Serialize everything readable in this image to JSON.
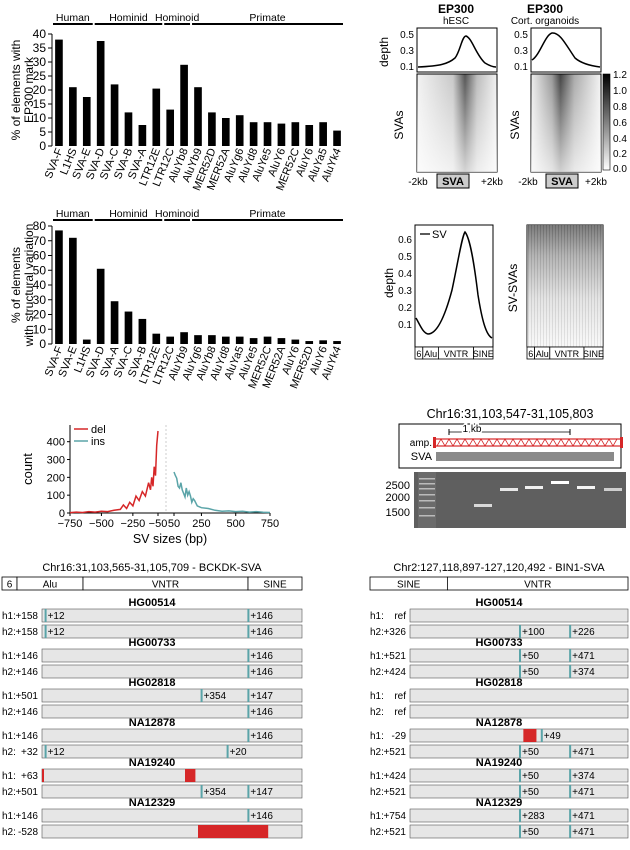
{
  "chart_data": [
    {
      "id": "ep300_bar",
      "type": "bar",
      "ylabel": "% of elements with EP300 mark",
      "ylim": [
        0,
        40
      ],
      "yticks": [
        0,
        5,
        10,
        15,
        20,
        25,
        30,
        35,
        40
      ],
      "groups": [
        {
          "label": "Human",
          "from": 0,
          "to": 2
        },
        {
          "label": "Hominid",
          "from": 3,
          "to": 7
        },
        {
          "label": "Hominoid",
          "from": 8,
          "to": 9
        },
        {
          "label": "Primate",
          "from": 10,
          "to": 20
        }
      ],
      "categories": [
        "SVA-F",
        "L1HS",
        "SVA-E",
        "SVA-D",
        "SVA-C",
        "SVA-B",
        "SVA-A",
        "LTR12E",
        "LTR12C",
        "AluYb8",
        "AluYb9",
        "MER52D",
        "MER52A",
        "AluYg6",
        "AluYd8",
        "AluYe5",
        "AluY6",
        "MER52C",
        "AluY6",
        "AluYa5",
        "AluYk4"
      ],
      "values": [
        38,
        21,
        17.5,
        37.5,
        22,
        12,
        7.5,
        20.5,
        13,
        29,
        21,
        12,
        10,
        11,
        8.5,
        8.5,
        8,
        8.5,
        7.5,
        8.5,
        5.5
      ]
    },
    {
      "id": "sv_bar",
      "type": "bar",
      "ylabel": "% of elements with structural variation",
      "ylim": [
        0,
        80
      ],
      "yticks": [
        0,
        10,
        20,
        30,
        40,
        50,
        60,
        70,
        80
      ],
      "groups": [
        {
          "label": "Human",
          "from": 0,
          "to": 2
        },
        {
          "label": "Hominid",
          "from": 3,
          "to": 7
        },
        {
          "label": "Hominoid",
          "from": 8,
          "to": 9
        },
        {
          "label": "Primate",
          "from": 10,
          "to": 20
        }
      ],
      "categories": [
        "SVA-F",
        "SVA-E",
        "L1HS",
        "SVA-D",
        "SVA-A",
        "SVA-C",
        "SVA-B",
        "LTR12E",
        "LTR12C",
        "AluYb9",
        "AluYg6",
        "AluYb8",
        "AluYd8",
        "AluYa5",
        "AluYe5",
        "MER52C",
        "MER52A",
        "AluY6",
        "MER52D",
        "AluY6",
        "AluYk4"
      ],
      "values": [
        77,
        72,
        3,
        51,
        29,
        22,
        17,
        7,
        5,
        8,
        6,
        6,
        5,
        5,
        4,
        5,
        4,
        3,
        2,
        2.5,
        2
      ]
    },
    {
      "id": "sv_size_line",
      "type": "line",
      "xlabel": "SV sizes (bp)",
      "ylabel": "count",
      "xticks": [
        "−750",
        "−500",
        "−250",
        "−50",
        "50",
        "250",
        "500",
        "750"
      ],
      "yticks": [
        0,
        100,
        200,
        300,
        400
      ],
      "series": [
        {
          "name": "del",
          "color": "#d62728",
          "x": [
            -750,
            -700,
            -650,
            -600,
            -550,
            -500,
            -450,
            -400,
            -350,
            -325,
            -300,
            -275,
            -250,
            -225,
            -200,
            -175,
            -150,
            -125,
            -110,
            -100,
            -90,
            -80,
            -70,
            -60,
            -50
          ],
          "y": [
            2,
            5,
            3,
            8,
            5,
            10,
            8,
            15,
            20,
            45,
            25,
            60,
            40,
            95,
            70,
            120,
            95,
            170,
            130,
            200,
            150,
            260,
            210,
            380,
            460
          ]
        },
        {
          "name": "ins",
          "color": "#5aa4a8",
          "x": [
            50,
            60,
            70,
            80,
            90,
            100,
            110,
            120,
            130,
            140,
            150,
            160,
            170,
            180,
            190,
            200,
            220,
            250,
            300,
            350,
            400,
            450,
            500,
            550,
            600,
            650,
            700,
            750
          ],
          "y": [
            230,
            210,
            195,
            150,
            140,
            170,
            130,
            110,
            90,
            140,
            100,
            120,
            95,
            60,
            80,
            70,
            40,
            30,
            25,
            15,
            10,
            12,
            8,
            10,
            5,
            8,
            4,
            3
          ]
        }
      ]
    }
  ],
  "heatmaps": {
    "hesc": {
      "title": "EP300",
      "subtitle": "hESC",
      "ylabel_top": "depth",
      "ylabel": "SVAs",
      "yticks": [
        "0.5",
        "0.3",
        "0.1"
      ],
      "x_left": "-2kb",
      "x_center": "SVA",
      "x_right": "+2kb"
    },
    "organoid": {
      "title": "EP300",
      "subtitle": "Cort. organoids",
      "ylabel": "SVAs",
      "yticks": [
        "0.5",
        "0.3",
        "0.1"
      ],
      "x_left": "-2kb",
      "x_center": "SVA",
      "x_right": "+2kb"
    },
    "colorbar": [
      "1.2",
      "1.0",
      "0.8",
      "0.6",
      "0.4",
      "0.2",
      "0.0"
    ],
    "sv_profile": {
      "legend": "SV",
      "ylabel": "depth",
      "yticks": [
        "0.6",
        "0.5",
        "0.4",
        "0.3",
        "0.2",
        "0.1"
      ],
      "segments": [
        "6",
        "Alu",
        "VNTR",
        "SINE"
      ]
    },
    "sv_heat": {
      "ylabel": "SV-SVAs",
      "segments": [
        "6",
        "Alu",
        "VNTR",
        "SINE"
      ]
    }
  },
  "gel": {
    "title": "Chr16:31,103,547-31,105,803",
    "scale": "1 kb",
    "amp_label": "amp.",
    "sva_label": "SVA",
    "ladder": [
      "2500",
      "2000",
      "1500"
    ]
  },
  "haplo_left": {
    "title": "Chr16:31,103,565-31,105,709 - BCKDK-SVA",
    "segments": [
      "6",
      "Alu",
      "VNTR",
      "SINE"
    ],
    "samples": [
      {
        "name": "HG00514",
        "h1": {
          "label": "h1:",
          "value": "+158"
        },
        "h2": {
          "label": "h2:",
          "value": "+158"
        },
        "h1_marks": [
          "+12",
          "+146"
        ],
        "h2_marks": [
          "+12",
          "+146"
        ]
      },
      {
        "name": "HG00733",
        "h1": {
          "label": "h1:",
          "value": "+146"
        },
        "h2": {
          "label": "h2:",
          "value": "+146"
        },
        "h1_marks": [
          "+146"
        ],
        "h2_marks": [
          "+146"
        ]
      },
      {
        "name": "HG02818",
        "h1": {
          "label": "h1:",
          "value": "+501"
        },
        "h2": {
          "label": "h2:",
          "value": "+146"
        },
        "h1_marks": [
          "+354",
          "+147"
        ],
        "h2_marks": [
          "+146"
        ]
      },
      {
        "name": "NA12878",
        "h1": {
          "label": "h1:",
          "value": "+146"
        },
        "h2": {
          "label": "h2:",
          "value": "+32"
        },
        "h1_marks": [
          "+146"
        ],
        "h2_marks": [
          "+12",
          "+20"
        ]
      },
      {
        "name": "NA19240",
        "h1": {
          "label": "h1:",
          "value": "+63"
        },
        "h2": {
          "label": "h2:",
          "value": "+501"
        },
        "h1_marks": [],
        "h2_marks": [
          "+354",
          "+147"
        ]
      },
      {
        "name": "NA12329",
        "h1": {
          "label": "h1:",
          "value": "+146"
        },
        "h2": {
          "label": "h2:",
          "value": "-528"
        },
        "h1_marks": [
          "+146"
        ],
        "h2_marks": []
      }
    ]
  },
  "haplo_right": {
    "title": "Chr2:127,118,897-127,120,492 - BIN1-SVA",
    "segments": [
      "SINE",
      "VNTR"
    ],
    "samples": [
      {
        "name": "HG00514",
        "h1": {
          "label": "h1:",
          "value": "ref"
        },
        "h2": {
          "label": "h2:",
          "value": "+326"
        },
        "h1_marks": [],
        "h2_marks": [
          "+100",
          "+226"
        ]
      },
      {
        "name": "HG00733",
        "h1": {
          "label": "h1:",
          "value": "+521"
        },
        "h2": {
          "label": "h2:",
          "value": "+424"
        },
        "h1_marks": [
          "+50",
          "+471"
        ],
        "h2_marks": [
          "+50",
          "+374"
        ]
      },
      {
        "name": "HG02818",
        "h1": {
          "label": "h1:",
          "value": "ref"
        },
        "h2": {
          "label": "h2:",
          "value": "ref"
        },
        "h1_marks": [],
        "h2_marks": []
      },
      {
        "name": "NA12878",
        "h1": {
          "label": "h1:",
          "value": "-29"
        },
        "h2": {
          "label": "h2:",
          "value": "+521"
        },
        "h1_marks": [
          "+49"
        ],
        "h2_marks": [
          "+50",
          "+471"
        ]
      },
      {
        "name": "NA19240",
        "h1": {
          "label": "h1:",
          "value": "+424"
        },
        "h2": {
          "label": "h2:",
          "value": "+521"
        },
        "h1_marks": [
          "+50",
          "+374"
        ],
        "h2_marks": [
          "+50",
          "+471"
        ]
      },
      {
        "name": "NA12329",
        "h1": {
          "label": "h1:",
          "value": "+754"
        },
        "h2": {
          "label": "h2:",
          "value": "+521"
        },
        "h1_marks": [
          "+283",
          "+471"
        ],
        "h2_marks": [
          "+50",
          "+471"
        ]
      }
    ]
  },
  "colors": {
    "bar": "#000000",
    "del": "#d62728",
    "ins": "#5aa4a8",
    "marker": "#5aa4a8",
    "deletion_block": "#d62728",
    "track": "#e6e6e6"
  }
}
